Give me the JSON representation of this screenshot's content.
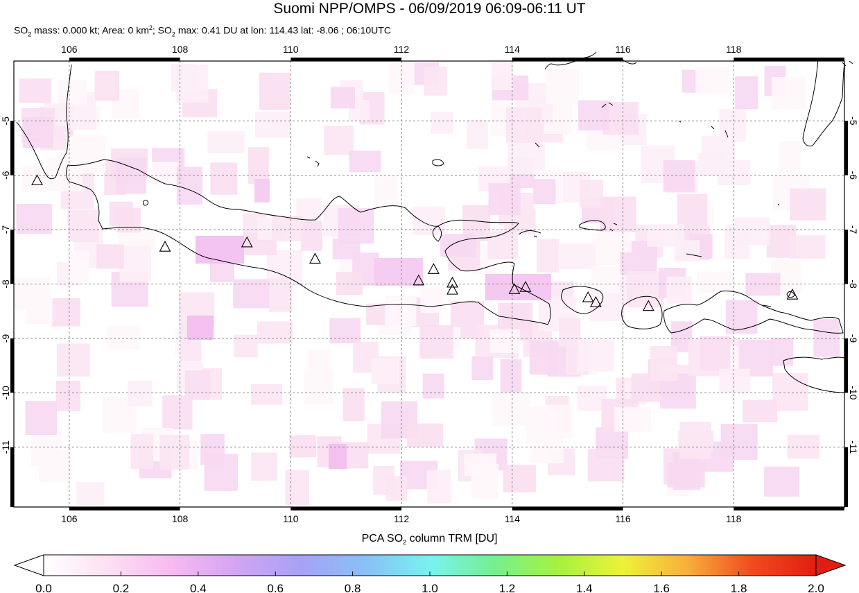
{
  "header": {
    "title": "Suomi NPP/OMPS - 06/09/2019 06:09-06:11 UT",
    "mass_prefix": "SO",
    "mass_sub": "2",
    "mass_text": " mass: 0.000 kt; Area: 0 km",
    "area_sup": "2",
    "max_prefix": "; SO",
    "max_sub": "2",
    "max_text": " max: 0.41 DU at lon: 114.43 lat: -8.06 ; 06:10UTC"
  },
  "map": {
    "lon_range": [
      105,
      120
    ],
    "lat_range": [
      -12.1,
      -3.9
    ],
    "lon_ticks": [
      "106",
      "108",
      "110",
      "112",
      "114",
      "116",
      "118"
    ],
    "lat_ticks": [
      "-5",
      "-6",
      "-7",
      "-8",
      "-9",
      "-10",
      "-11"
    ],
    "lon_tick_values": [
      106,
      108,
      110,
      112,
      114,
      116,
      118
    ],
    "lat_tick_values": [
      -5,
      -6,
      -7,
      -8,
      -9,
      -10,
      -11
    ],
    "grid": true,
    "volcano_marker": "triangle-icon",
    "volcanoes": [
      [
        105.42,
        -6.1
      ],
      [
        107.73,
        -7.32
      ],
      [
        109.21,
        -7.24
      ],
      [
        110.44,
        -7.54
      ],
      [
        112.31,
        -7.94
      ],
      [
        112.58,
        -7.73
      ],
      [
        112.92,
        -7.98
      ],
      [
        112.92,
        -8.11
      ],
      [
        114.04,
        -8.1
      ],
      [
        114.24,
        -8.06
      ],
      [
        115.37,
        -8.25
      ],
      [
        115.51,
        -8.34
      ],
      [
        116.46,
        -8.41
      ],
      [
        119.06,
        -8.2
      ]
    ]
  },
  "colorbar": {
    "label_prefix": "PCA SO",
    "label_sub": "2",
    "label_suffix": " column TRM [DU]",
    "min": 0.0,
    "max": 2.0,
    "tick_labels": [
      "0.0",
      "0.2",
      "0.4",
      "0.6",
      "0.8",
      "1.0",
      "1.2",
      "1.4",
      "1.6",
      "1.8",
      "2.0"
    ],
    "colors": [
      "#ffffff",
      "#fde0f3",
      "#f7b9f1",
      "#d3a4f4",
      "#a7a2f5",
      "#89c0f7",
      "#78f2f0",
      "#76f08e",
      "#a6f23c",
      "#eef23a",
      "#f7b03a",
      "#f24a1e",
      "#e01f10"
    ]
  }
}
